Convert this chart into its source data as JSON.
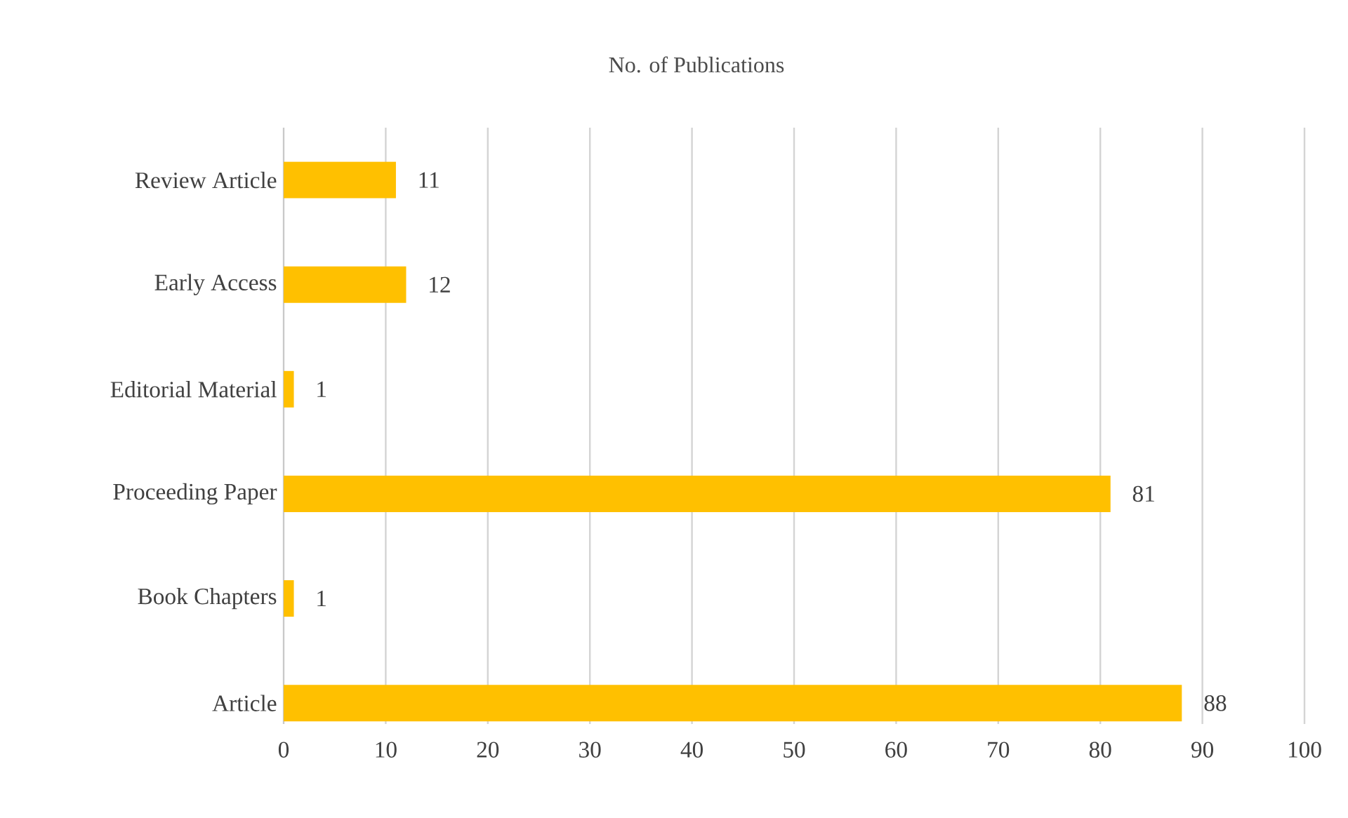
{
  "chart_data": {
    "type": "bar",
    "orientation": "horizontal",
    "title": "No. of Publications",
    "categories": [
      "Review Article",
      "Early Access",
      "Editorial Material",
      "Proceeding Paper",
      "Book Chapters",
      "Article"
    ],
    "values": [
      11,
      12,
      1,
      81,
      1,
      88
    ],
    "color": "#ffc000",
    "xlim": [
      0,
      100
    ],
    "xticks": [
      0,
      10,
      20,
      30,
      40,
      50,
      60,
      70,
      80,
      90,
      100
    ],
    "grid": "x",
    "data_labels": true
  }
}
